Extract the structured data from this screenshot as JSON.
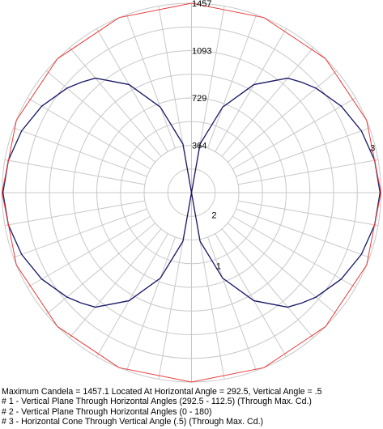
{
  "chart_data": {
    "type": "polar",
    "radial_ticks": [
      {
        "value": 364,
        "label": "364"
      },
      {
        "value": 729,
        "label": "729"
      },
      {
        "value": 1093,
        "label": "1093"
      },
      {
        "value": 1457,
        "label": "1457"
      }
    ],
    "r_max": 1457,
    "grid": true,
    "series": [
      {
        "label": "1",
        "color": "#3c3ca0",
        "points": [
          [
            0,
            0
          ],
          [
            10,
            380
          ],
          [
            20,
            700
          ],
          [
            30,
            960
          ],
          [
            40,
            1150
          ],
          [
            45,
            1200
          ],
          [
            50,
            1250
          ],
          [
            60,
            1330
          ],
          [
            70,
            1390
          ],
          [
            80,
            1430
          ],
          [
            90,
            1450
          ],
          [
            100,
            1430
          ],
          [
            110,
            1390
          ],
          [
            120,
            1330
          ],
          [
            130,
            1250
          ],
          [
            135,
            1200
          ],
          [
            140,
            1150
          ],
          [
            150,
            960
          ],
          [
            160,
            700
          ],
          [
            170,
            380
          ],
          [
            180,
            0
          ]
        ]
      },
      {
        "label": "2",
        "color": "#1a1a66",
        "points": [
          [
            0,
            0
          ],
          [
            10,
            380
          ],
          [
            20,
            700
          ],
          [
            30,
            960
          ],
          [
            40,
            1150
          ],
          [
            45,
            1200
          ],
          [
            50,
            1250
          ],
          [
            60,
            1330
          ],
          [
            70,
            1390
          ],
          [
            80,
            1430
          ],
          [
            90,
            1450
          ],
          [
            100,
            1430
          ],
          [
            110,
            1390
          ],
          [
            120,
            1330
          ],
          [
            130,
            1250
          ],
          [
            135,
            1200
          ],
          [
            140,
            1150
          ],
          [
            150,
            960
          ],
          [
            160,
            700
          ],
          [
            170,
            380
          ],
          [
            180,
            0
          ]
        ]
      },
      {
        "label": "3",
        "color": "#e83a3a",
        "shape": "polygon-circle",
        "value": 1457.1,
        "vertices": 16
      }
    ]
  },
  "caption": {
    "line1": "Maximum Candela = 1457.1    Located At Horizontal Angle = 292.5, Vertical Angle = .5",
    "line2": "# 1 - Vertical Plane Through Horizontal Angles (292.5 - 112.5) (Through Max. Cd.)",
    "line3": "# 2 - Vertical Plane Through Horizontal Angles (0 - 180)",
    "line4": "# 3 - Horizontal Cone Through Vertical Angle (.5) (Through Max. Cd.)"
  },
  "colors": {
    "grid": "#c8c8c8",
    "background": "#ffffff"
  }
}
